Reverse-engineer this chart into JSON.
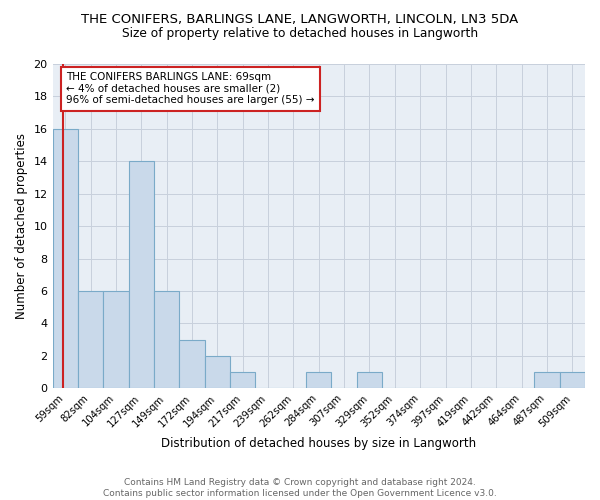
{
  "title": "THE CONIFERS, BARLINGS LANE, LANGWORTH, LINCOLN, LN3 5DA",
  "subtitle": "Size of property relative to detached houses in Langworth",
  "xlabel": "Distribution of detached houses by size in Langworth",
  "ylabel": "Number of detached properties",
  "bin_labels": [
    "59sqm",
    "82sqm",
    "104sqm",
    "127sqm",
    "149sqm",
    "172sqm",
    "194sqm",
    "217sqm",
    "239sqm",
    "262sqm",
    "284sqm",
    "307sqm",
    "329sqm",
    "352sqm",
    "374sqm",
    "397sqm",
    "419sqm",
    "442sqm",
    "464sqm",
    "487sqm",
    "509sqm"
  ],
  "bar_heights": [
    16,
    6,
    6,
    14,
    6,
    3,
    2,
    1,
    0,
    0,
    1,
    0,
    1,
    0,
    0,
    0,
    0,
    0,
    0,
    1,
    1
  ],
  "bar_color": "#c9d9ea",
  "bar_edgecolor": "#7aaac8",
  "bar_linewidth": 0.8,
  "vline_color": "#cc2222",
  "vline_pos": 0.42,
  "annotation_text": "THE CONIFERS BARLINGS LANE: 69sqm\n← 4% of detached houses are smaller (2)\n96% of semi-detached houses are larger (55) →",
  "ylim": [
    0,
    20
  ],
  "yticks": [
    0,
    2,
    4,
    6,
    8,
    10,
    12,
    14,
    16,
    18,
    20
  ],
  "grid_color": "#c8d0dc",
  "background_color": "#e8eef5",
  "footer_line1": "Contains HM Land Registry data © Crown copyright and database right 2024.",
  "footer_line2": "Contains public sector information licensed under the Open Government Licence v3.0."
}
